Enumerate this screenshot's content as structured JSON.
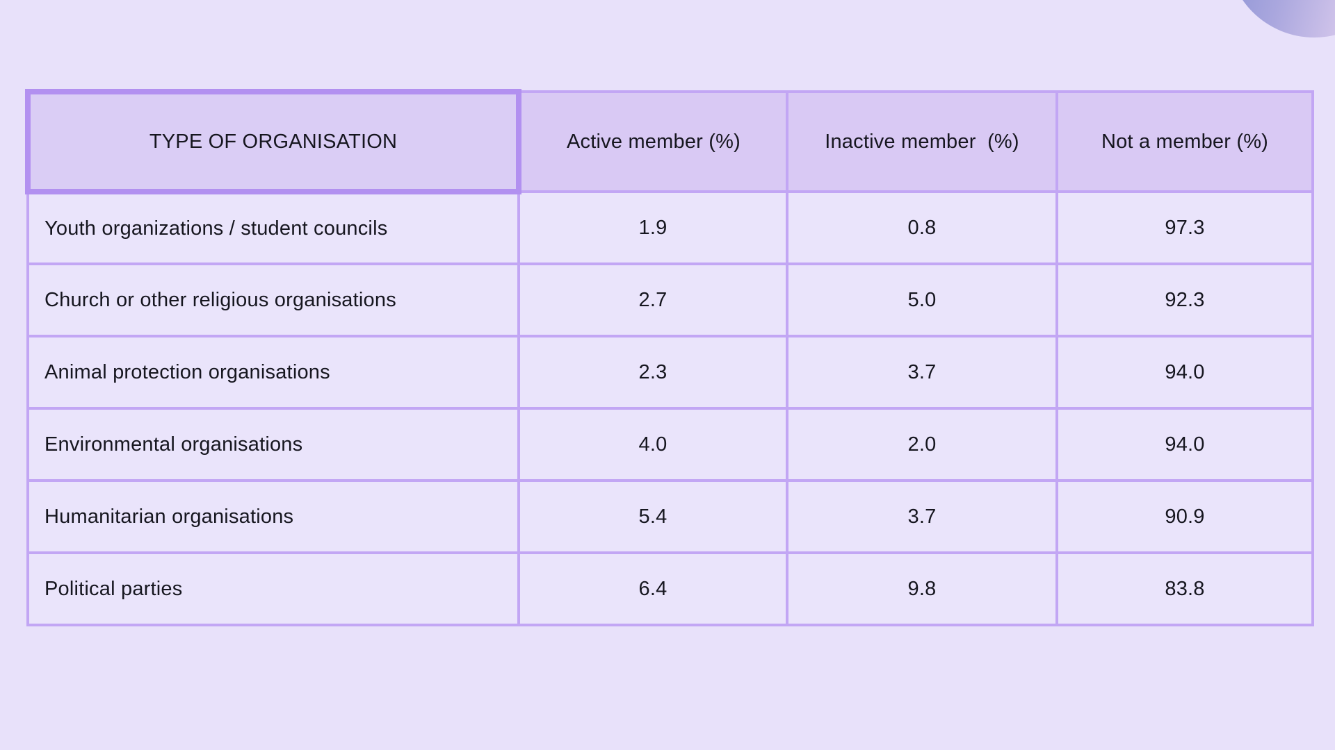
{
  "page": {
    "background_color": "#e8e1fa",
    "text_color": "#16161f",
    "border_color": "#c2a6f4",
    "outer_border_color": "#b79af2",
    "header_fill_color": "#d9c9f4",
    "row_fill_color": "#eae4fb",
    "corner_cell_border_color": "#b290f0",
    "decor_circle_gradient": [
      "#8a92d4",
      "#ded2f2"
    ]
  },
  "table": {
    "columns": [
      "TYPE OF ORGANISATION",
      "Active member (%)",
      "Inactive member  (%)",
      "Not a member (%)"
    ],
    "rows": [
      {
        "label": "Youth organizations / student councils",
        "active": "1.9",
        "inactive": "0.8",
        "not_member": "97.3"
      },
      {
        "label": "Church or other religious organisations",
        "active": "2.7",
        "inactive": "5.0",
        "not_member": "92.3"
      },
      {
        "label": "Animal protection organisations",
        "active": "2.3",
        "inactive": "3.7",
        "not_member": "94.0"
      },
      {
        "label": "Environmental organisations",
        "active": "4.0",
        "inactive": "2.0",
        "not_member": "94.0"
      },
      {
        "label": "Humanitarian organisations",
        "active": "5.4",
        "inactive": "3.7",
        "not_member": "90.9"
      },
      {
        "label": "Political parties",
        "active": "6.4",
        "inactive": "9.8",
        "not_member": "83.8"
      }
    ]
  },
  "chart_data": {
    "type": "table",
    "title": "",
    "columns": [
      "TYPE OF ORGANISATION",
      "Active member (%)",
      "Inactive member (%)",
      "Not a member (%)"
    ],
    "rows": [
      [
        "Youth organizations / student councils",
        1.9,
        0.8,
        97.3
      ],
      [
        "Church or other religious organisations",
        2.7,
        5.0,
        92.3
      ],
      [
        "Animal protection organisations",
        2.3,
        3.7,
        94.0
      ],
      [
        "Environmental organisations",
        4.0,
        2.0,
        94.0
      ],
      [
        "Humanitarian organisations",
        5.4,
        3.7,
        90.9
      ],
      [
        "Political parties",
        6.4,
        9.8,
        83.8
      ]
    ]
  }
}
